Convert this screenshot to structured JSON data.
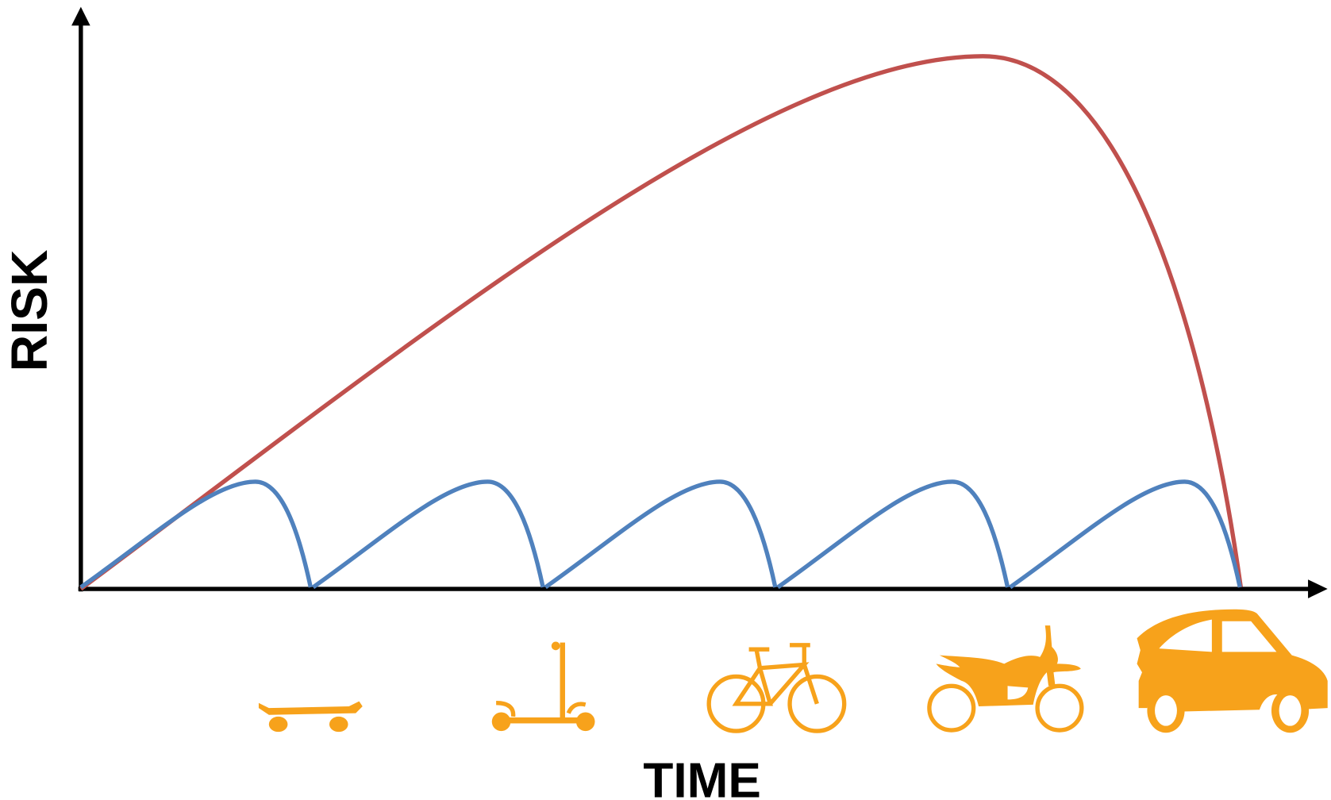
{
  "axes": {
    "y_label": "RISK",
    "x_label": "TIME"
  }
}
